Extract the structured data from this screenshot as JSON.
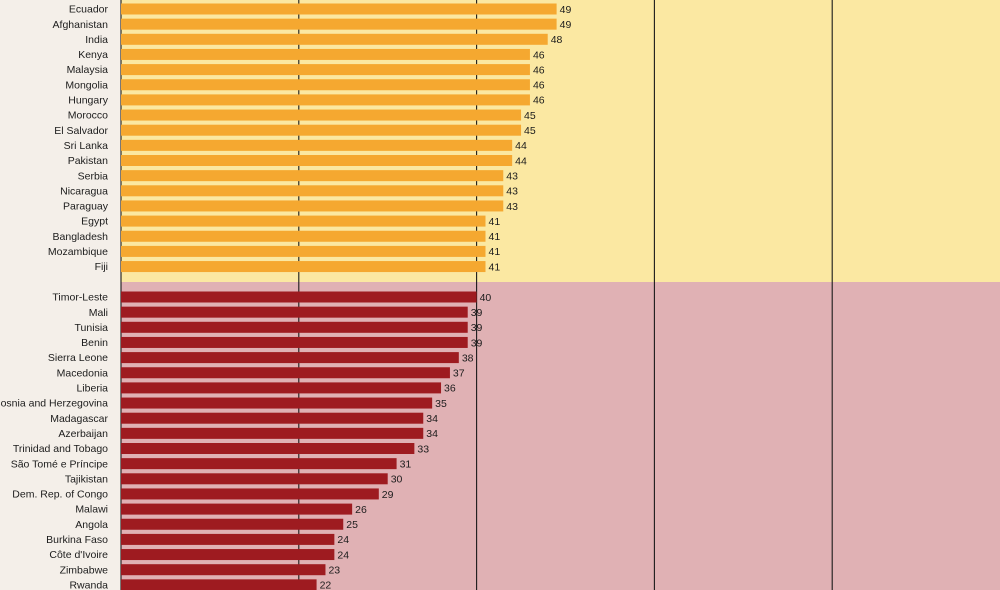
{
  "chart_data": {
    "type": "bar",
    "orientation": "horizontal",
    "xlim": [
      0,
      100
    ],
    "grid_values": [
      20,
      40,
      60,
      80
    ],
    "groups": [
      {
        "name": "upper",
        "bar_color": "#f5a830",
        "panel_color": "#fbe8a2",
        "categories": [
          "Ecuador",
          "Afghanistan",
          "India",
          "Kenya",
          "Malaysia",
          "Mongolia",
          "Hungary",
          "Morocco",
          "El Salvador",
          "Sri Lanka",
          "Pakistan",
          "Serbia",
          "Nicaragua",
          "Paraguay",
          "Egypt",
          "Bangladesh",
          "Mozambique",
          "Fiji"
        ],
        "values": [
          49,
          49,
          48,
          46,
          46,
          46,
          46,
          45,
          45,
          44,
          44,
          43,
          43,
          43,
          41,
          41,
          41,
          41
        ],
        "value_labels": [
          "49",
          "49",
          "48",
          "46",
          "46",
          "46",
          "46",
          "45",
          "45",
          "44",
          "44",
          "43",
          "43",
          "43",
          "41",
          "41",
          "41",
          "41"
        ]
      },
      {
        "name": "lower",
        "bar_color": "#9e1b20",
        "panel_color": "#e0b1b4",
        "categories": [
          "Timor-Leste",
          "Mali",
          "Tunisia",
          "Benin",
          "Sierra Leone",
          "Macedonia",
          "Liberia",
          "Bosnia and Herzegovina",
          "Madagascar",
          "Azerbaijan",
          "Trinidad and Tobago",
          "São Tomé e Príncipe",
          "Tajikistan",
          "Dem. Rep. of Congo",
          "Malawi",
          "Angola",
          "Burkina Faso",
          "Côte d'Ivoire",
          "Zimbabwe",
          "Rwanda"
        ],
        "values": [
          40,
          39,
          39,
          39,
          38,
          37,
          36,
          35,
          34,
          34,
          33,
          31,
          30,
          29,
          26,
          25,
          24,
          24,
          23,
          22
        ],
        "value_labels": [
          "40",
          "39",
          "39",
          "39",
          "38",
          "37",
          "36",
          "35",
          "34",
          "34",
          "33",
          "31",
          "30",
          "29",
          "26",
          "25",
          "24",
          "24",
          "23",
          "22"
        ]
      }
    ]
  }
}
